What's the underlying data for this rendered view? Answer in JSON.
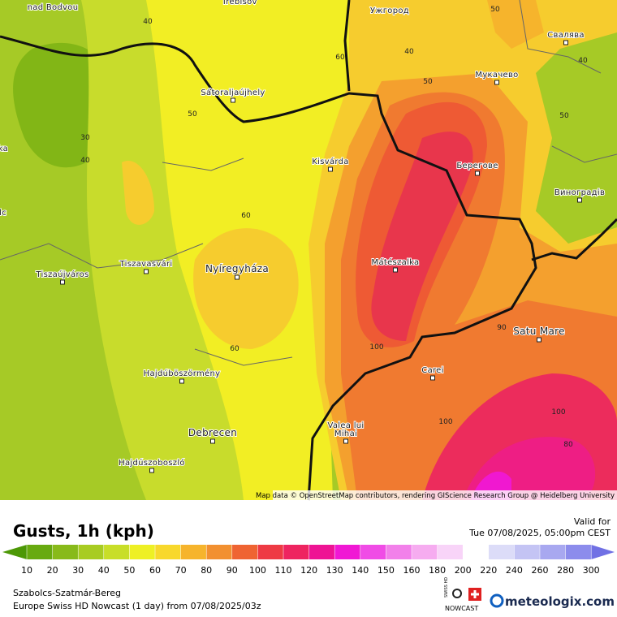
{
  "map": {
    "places": [
      "nad Bodvou",
      "Trebišov",
      "Ужгород",
      "Свалява",
      "Мукачево",
      "Sátoraljaújhely",
      "Kisvárda",
      "Берегове",
      "Виноградів",
      "Nyíregyháza",
      "Tiszavasvári",
      "Tiszaújváros",
      "Mátészalka",
      "Satu Mare",
      "Carei",
      "Hajdúböszörmény",
      "Debrecen",
      "Valea lui",
      "Mihai",
      "Hajdúszoboszló",
      "ika",
      "olc"
    ],
    "contour_labels": [
      40,
      50,
      60,
      40,
      50,
      40,
      30,
      40,
      50,
      60,
      50,
      60,
      100,
      90,
      100,
      80,
      100
    ],
    "attribution": "Map data © OpenStreetMap contributors, rendering GIScience Research Group @ Heidelberg University"
  },
  "legend": {
    "title": "Gusts, 1h (kph)",
    "ticks": [
      10,
      20,
      30,
      40,
      50,
      60,
      70,
      80,
      90,
      100,
      110,
      120,
      130,
      140,
      150,
      160,
      180,
      200,
      220,
      240,
      260,
      280,
      300
    ],
    "colors": [
      "#4c9806",
      "#68aa10",
      "#88ba1a",
      "#a8cc22",
      "#c8de28",
      "#eef024",
      "#f8d82c",
      "#f6b42c",
      "#f29030",
      "#ef6432",
      "#ee3a44",
      "#ee2460",
      "#ee1494",
      "#f018d4",
      "#f04ce6",
      "#f280ea",
      "#f6acf0",
      "#f8d4f8",
      "#ffffff",
      "#dcdcf8",
      "#c4c4f4",
      "#a8a8f0",
      "#8c8cec",
      "#7070e4"
    ]
  },
  "footer": {
    "valid_label": "Valid for",
    "valid_time": "Tue 07/08/2025, 05:00pm CEST",
    "region": "Szabolcs-Szatmár-Bereg",
    "model": "Europe Swiss HD Nowcast (1 day) from 07/08/2025/03z",
    "badge_top": "SWISS HD",
    "badge_bottom": "NOWCAST",
    "brand": "meteologix.com"
  }
}
